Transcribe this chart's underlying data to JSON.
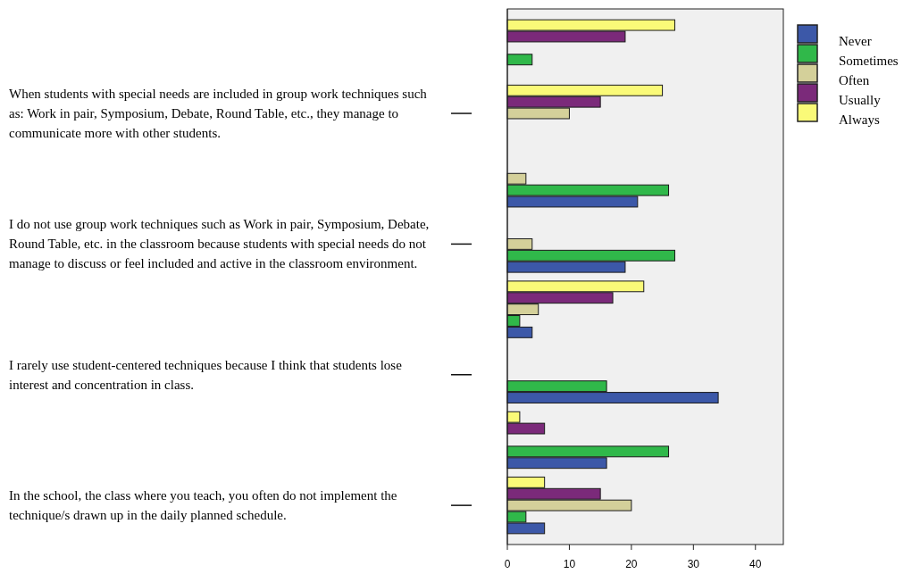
{
  "chart_data": {
    "type": "bar",
    "orientation": "horizontal",
    "categories": [
      null,
      "When students with special needs are included in group work techniques such as: Work in pair, Symposium, Debate, Round Table, etc., they manage to communicate more with other students.",
      null,
      "I do not use group work techniques such as Work in pair, Symposium, Debate, Round Table, etc. in the classroom because students with special needs do not manage to discuss or feel included and active in the classroom environment.",
      null,
      "I rarely use student-centered techniques because I think that students lose interest and concentration in class.",
      null,
      "In the school, the class where you teach, you often do not implement the technique/s drawn up in the daily planned schedule."
    ],
    "series": [
      {
        "name": "Never",
        "color": "#3c58a8",
        "values": [
          0,
          0,
          21,
          19,
          4,
          34,
          16,
          6
        ]
      },
      {
        "name": "Sometimes",
        "color": "#30b84a",
        "values": [
          4,
          0,
          26,
          27,
          2,
          16,
          26,
          3
        ]
      },
      {
        "name": "Often",
        "color": "#d4d09a",
        "values": [
          0,
          10,
          3,
          4,
          5,
          0,
          0,
          20
        ]
      },
      {
        "name": "Usually",
        "color": "#7b2a7a",
        "values": [
          19,
          15,
          0,
          0,
          17,
          0,
          6,
          15
        ]
      },
      {
        "name": "Always",
        "color": "#fafa78",
        "values": [
          27,
          25,
          0,
          0,
          22,
          0,
          2,
          6
        ]
      }
    ],
    "xlim": [
      0,
      44.5
    ],
    "xticks": [
      0,
      10,
      20,
      30,
      40
    ],
    "legend": "top right"
  }
}
